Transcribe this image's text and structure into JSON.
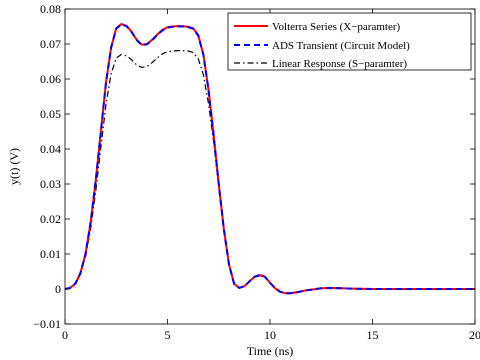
{
  "chart_data": {
    "type": "line",
    "xlabel": "Time (ns)",
    "ylabel": "y(t) (V)",
    "xlim": [
      0,
      20
    ],
    "ylim": [
      -0.01,
      0.08
    ],
    "x_ticks": [
      0,
      5,
      10,
      15,
      20
    ],
    "y_ticks": [
      -0.01,
      0,
      0.01,
      0.02,
      0.03,
      0.04,
      0.05,
      0.06,
      0.07,
      0.08
    ],
    "y_tick_labels": [
      "−0.01",
      "0",
      "0.01",
      "0.02",
      "0.03",
      "0.04",
      "0.05",
      "0.06",
      "0.07",
      "0.08"
    ],
    "grid": false,
    "legend_position": "top-right",
    "series": [
      {
        "name": "Volterra Series (X−paramter)",
        "color": "#ff0000",
        "style": "solid",
        "x": [
          0,
          0.25,
          0.5,
          0.75,
          1.0,
          1.25,
          1.5,
          1.75,
          2.0,
          2.25,
          2.5,
          2.75,
          3.0,
          3.25,
          3.5,
          3.75,
          4.0,
          4.25,
          4.5,
          4.75,
          5.0,
          5.25,
          5.5,
          5.75,
          6.0,
          6.25,
          6.5,
          6.75,
          7.0,
          7.25,
          7.5,
          7.75,
          8.0,
          8.25,
          8.5,
          8.75,
          9.0,
          9.25,
          9.5,
          9.75,
          10.0,
          10.25,
          10.5,
          10.75,
          11.0,
          11.25,
          11.5,
          11.75,
          12.0,
          12.5,
          13.0,
          13.5,
          14.0,
          15.0,
          16.0,
          17.0,
          18.0,
          19.0,
          20.0
        ],
        "y": [
          0,
          0.0003,
          0.0015,
          0.0045,
          0.01,
          0.019,
          0.031,
          0.045,
          0.059,
          0.069,
          0.0745,
          0.0757,
          0.0752,
          0.0735,
          0.0712,
          0.0698,
          0.07,
          0.0712,
          0.0727,
          0.074,
          0.0748,
          0.075,
          0.0751,
          0.0751,
          0.0749,
          0.0745,
          0.0725,
          0.067,
          0.057,
          0.044,
          0.03,
          0.017,
          0.007,
          0.0015,
          0.0003,
          0.0008,
          0.0022,
          0.0035,
          0.004,
          0.0035,
          0.0018,
          0.0002,
          -0.0008,
          -0.0012,
          -0.0012,
          -0.001,
          -0.0007,
          -0.0004,
          -0.0002,
          0.0002,
          0.0003,
          0.0002,
          0.0001,
          0,
          0,
          0,
          0,
          0,
          0
        ]
      },
      {
        "name": "ADS Transient (Circuit Model)",
        "color": "#0000ff",
        "style": "dashed",
        "x": [
          0,
          0.25,
          0.5,
          0.75,
          1.0,
          1.25,
          1.5,
          1.75,
          2.0,
          2.25,
          2.5,
          2.75,
          3.0,
          3.25,
          3.5,
          3.75,
          4.0,
          4.25,
          4.5,
          4.75,
          5.0,
          5.25,
          5.5,
          5.75,
          6.0,
          6.25,
          6.5,
          6.75,
          7.0,
          7.25,
          7.5,
          7.75,
          8.0,
          8.25,
          8.5,
          8.75,
          9.0,
          9.25,
          9.5,
          9.75,
          10.0,
          10.25,
          10.5,
          10.75,
          11.0,
          11.25,
          11.5,
          11.75,
          12.0,
          12.5,
          13.0,
          13.5,
          14.0,
          15.0,
          16.0,
          17.0,
          18.0,
          19.0,
          20.0
        ],
        "y": [
          0,
          0.0003,
          0.0015,
          0.0045,
          0.01,
          0.019,
          0.031,
          0.045,
          0.059,
          0.069,
          0.0744,
          0.0756,
          0.0751,
          0.0734,
          0.0711,
          0.0697,
          0.0699,
          0.0711,
          0.0726,
          0.0739,
          0.0747,
          0.0749,
          0.075,
          0.075,
          0.0748,
          0.0744,
          0.0724,
          0.0669,
          0.0569,
          0.0439,
          0.03,
          0.017,
          0.007,
          0.0015,
          0.0003,
          0.0008,
          0.0022,
          0.0035,
          0.004,
          0.0035,
          0.0018,
          0.0002,
          -0.0008,
          -0.0012,
          -0.0012,
          -0.001,
          -0.0007,
          -0.0004,
          -0.0002,
          0.0002,
          0.0003,
          0.0002,
          0.0001,
          0,
          0,
          0,
          0,
          0,
          0
        ]
      },
      {
        "name": "Linear Response (S−paramter)",
        "color": "#000000",
        "style": "dashdot",
        "x": [
          0,
          0.25,
          0.5,
          0.75,
          1.0,
          1.25,
          1.5,
          1.75,
          2.0,
          2.25,
          2.5,
          2.75,
          3.0,
          3.25,
          3.5,
          3.75,
          4.0,
          4.25,
          4.5,
          4.75,
          5.0,
          5.25,
          5.5,
          5.75,
          6.0,
          6.25,
          6.5,
          6.75,
          7.0,
          7.25,
          7.5,
          7.75,
          8.0,
          8.25,
          8.5,
          8.75,
          9.0,
          9.25,
          9.5,
          9.75,
          10.0,
          10.25,
          10.5,
          10.75,
          11.0,
          11.25,
          11.5,
          11.75,
          12.0,
          12.5,
          13.0,
          13.5,
          14.0,
          15.0,
          16.0,
          17.0,
          18.0,
          19.0,
          20.0
        ],
        "y": [
          0,
          0.0003,
          0.0014,
          0.0042,
          0.0092,
          0.0172,
          0.028,
          0.0405,
          0.0528,
          0.0615,
          0.066,
          0.067,
          0.0666,
          0.0655,
          0.064,
          0.0633,
          0.0636,
          0.0647,
          0.066,
          0.0672,
          0.0678,
          0.068,
          0.0681,
          0.0681,
          0.068,
          0.0676,
          0.0658,
          0.0612,
          0.053,
          0.042,
          0.0292,
          0.0168,
          0.007,
          0.0015,
          0.0003,
          0.0008,
          0.0021,
          0.0033,
          0.0038,
          0.0033,
          0.0017,
          0.0002,
          -0.0007,
          -0.0011,
          -0.0011,
          -0.0009,
          -0.0006,
          -0.0004,
          -0.0002,
          0.0002,
          0.0003,
          0.0002,
          0.0001,
          0,
          0,
          0,
          0,
          0,
          0
        ]
      }
    ]
  }
}
